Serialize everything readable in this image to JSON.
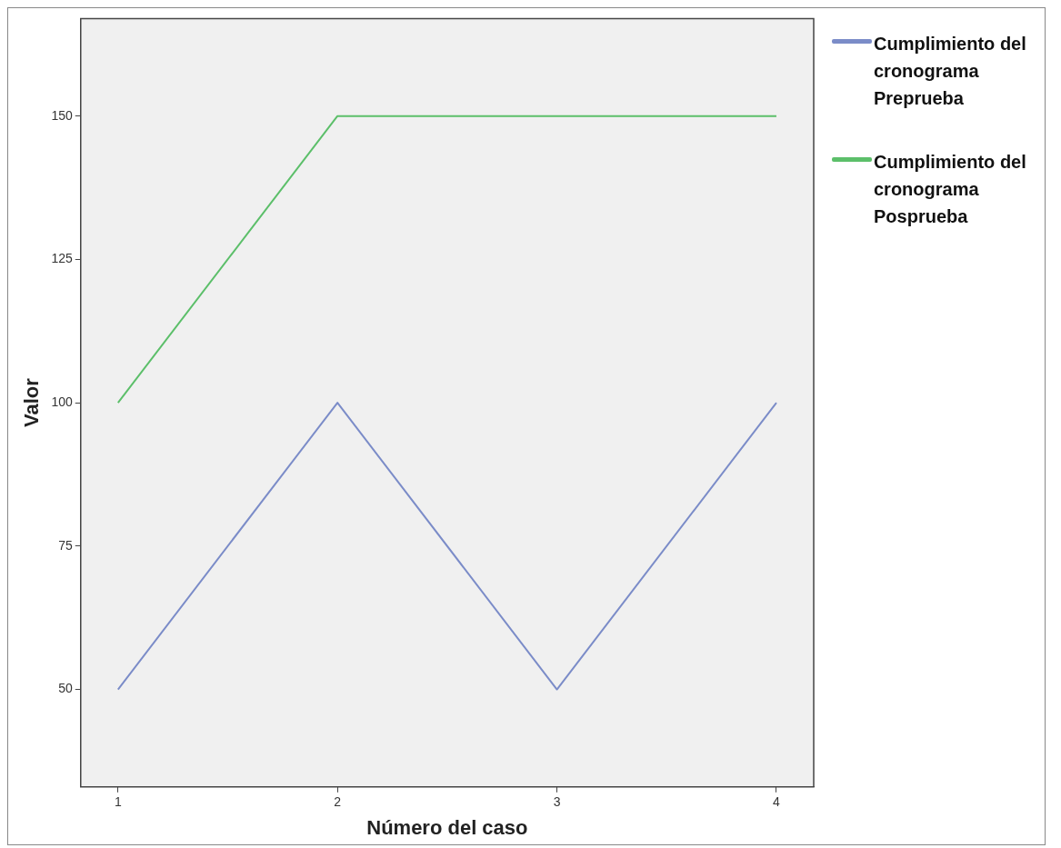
{
  "chart_data": {
    "type": "line",
    "xlabel": "Número del caso",
    "ylabel": "Valor",
    "x": [
      1,
      2,
      3,
      4
    ],
    "series": [
      {
        "name": "Cumplimiento del cronograma Preprueba",
        "color": "#7b8cc8",
        "values": [
          50,
          100,
          50,
          100
        ]
      },
      {
        "name": "Cumplimiento del cronograma Posprueba",
        "color": "#5cbf6a",
        "values": [
          100,
          150,
          150,
          150
        ]
      }
    ],
    "xlim": [
      0.83,
      4.17
    ],
    "xticks": [
      1,
      2,
      3,
      4
    ],
    "ylim": [
      33,
      167
    ],
    "yticks": [
      50,
      75,
      100,
      125,
      150
    ],
    "grid": false,
    "legend": "right",
    "marker": "none",
    "line_style": "solid"
  }
}
